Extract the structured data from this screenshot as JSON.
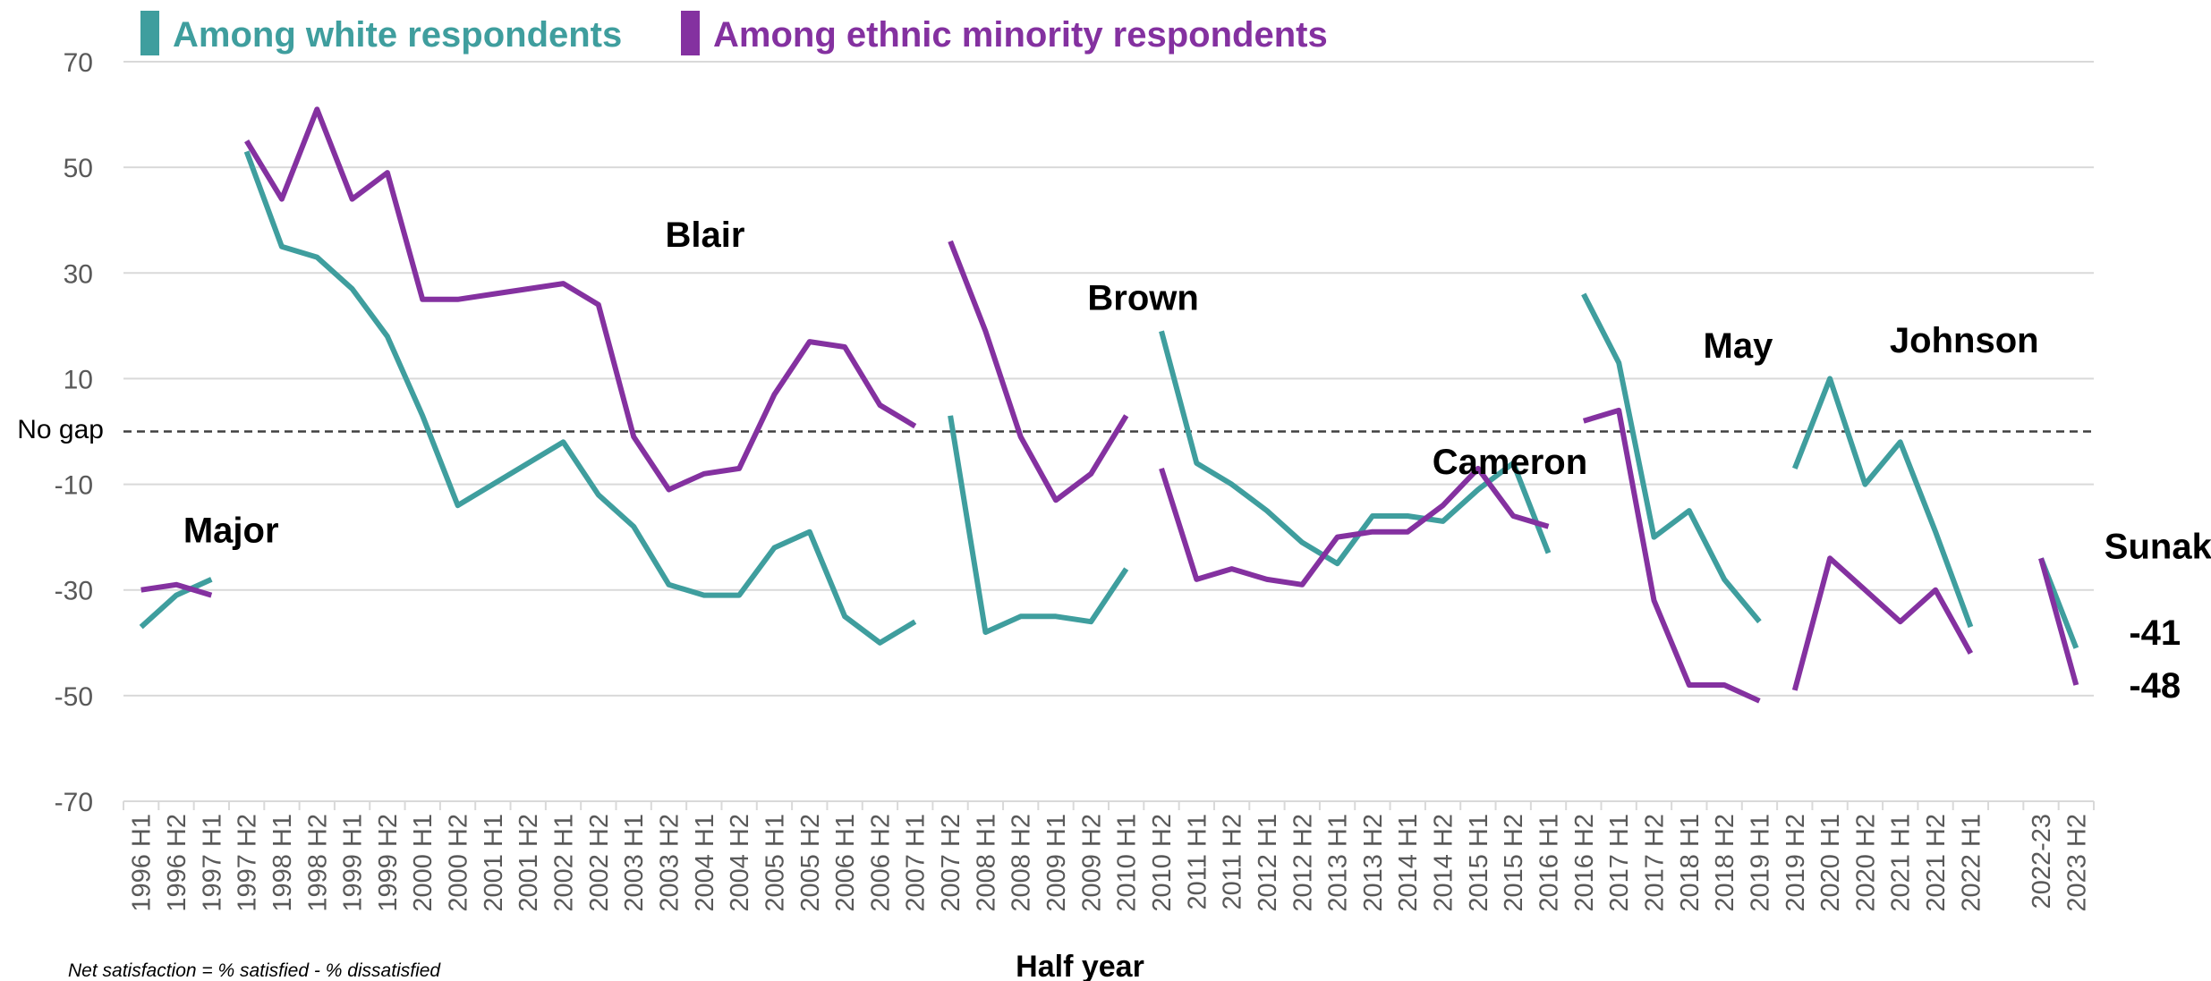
{
  "colors": {
    "white": "#3f9e9e",
    "minority": "#8431a0",
    "grid": "#d9d9d9",
    "gapline": "#404040"
  },
  "chart_data": {
    "type": "line",
    "ylim": [
      -70,
      70
    ],
    "yticks": [
      70,
      50,
      30,
      10,
      -10,
      -30,
      -50,
      -70
    ],
    "xlabel": "Half year",
    "note": "Net satisfaction = % satisfied - % dissatisfied",
    "reference_line": {
      "y": 0,
      "label": "No gap"
    },
    "categories": [
      "1996 H1",
      "1996 H2",
      "1997 H1",
      "1997 H2",
      "1998 H1",
      "1998 H2",
      "1999 H1",
      "1999 H2",
      "2000 H1",
      "2000 H2",
      "2001 H1",
      "2001 H2",
      "2002 H1",
      "2002 H2",
      "2003 H1",
      "2003 H2",
      "2004 H1",
      "2004 H2",
      "2005 H1",
      "2005 H2",
      "2006 H1",
      "2006 H2",
      "2007 H1",
      "2007 H2",
      "2008 H1",
      "2008 H2",
      "2009 H1",
      "2009 H2",
      "2010 H1",
      "2010 H2",
      "2011 H1",
      "2011 H2",
      "2012 H1",
      "2012 H2",
      "2013 H1",
      "2013 H2",
      "2014 H1",
      "2014 H2",
      "2015 H1",
      "2015 H2",
      "2016 H1",
      "2016 H2",
      "2017 H1",
      "2017 H2",
      "2018 H1",
      "2018 H2",
      "2019 H1",
      "2019 H2",
      "2020 H1",
      "2020 H2",
      "2021 H1",
      "2021 H2",
      "2022 H1",
      "",
      "2022-23",
      "2023 H2"
    ],
    "series": [
      {
        "name": "Among white respondents",
        "color_key": "white",
        "segments": [
          [
            [
              0,
              -37
            ],
            [
              1,
              -31
            ],
            [
              2,
              -28
            ]
          ],
          [
            [
              3,
              53
            ],
            [
              4,
              35
            ],
            [
              5,
              33
            ],
            [
              6,
              27
            ],
            [
              7,
              18
            ],
            [
              8,
              3
            ],
            [
              9,
              -14
            ],
            [
              10,
              -10
            ],
            [
              11,
              -6
            ],
            [
              12,
              -2
            ],
            [
              13,
              -12
            ],
            [
              14,
              -18
            ],
            [
              15,
              -29
            ],
            [
              16,
              -31
            ],
            [
              17,
              -31
            ],
            [
              18,
              -22
            ],
            [
              19,
              -19
            ],
            [
              20,
              -35
            ],
            [
              21,
              -40
            ],
            [
              22,
              -36
            ]
          ],
          [
            [
              23,
              3
            ],
            [
              24,
              -38
            ],
            [
              25,
              -35
            ],
            [
              26,
              -35
            ],
            [
              27,
              -36
            ],
            [
              28,
              -26
            ]
          ],
          [
            [
              29,
              19
            ],
            [
              30,
              -6
            ],
            [
              31,
              -10
            ],
            [
              32,
              -15
            ],
            [
              33,
              -21
            ],
            [
              34,
              -25
            ],
            [
              35,
              -16
            ],
            [
              36,
              -16
            ],
            [
              37,
              -17
            ],
            [
              38,
              -11
            ],
            [
              39,
              -6
            ],
            [
              40,
              -23
            ]
          ],
          [
            [
              41,
              26
            ],
            [
              42,
              13
            ],
            [
              43,
              -20
            ],
            [
              44,
              -15
            ],
            [
              45,
              -28
            ],
            [
              46,
              -36
            ]
          ],
          [
            [
              47,
              -7
            ],
            [
              48,
              10
            ],
            [
              49,
              -10
            ],
            [
              50,
              -2
            ],
            [
              51,
              -19
            ],
            [
              52,
              -37
            ]
          ],
          [
            [
              54,
              -24
            ],
            [
              55,
              -41
            ]
          ]
        ]
      },
      {
        "name": "Among ethnic minority respondents",
        "color_key": "minority",
        "segments": [
          [
            [
              0,
              -30
            ],
            [
              1,
              -29
            ],
            [
              2,
              -31
            ]
          ],
          [
            [
              3,
              55
            ],
            [
              4,
              44
            ],
            [
              5,
              61
            ],
            [
              6,
              44
            ],
            [
              7,
              49
            ],
            [
              8,
              25
            ],
            [
              9,
              25
            ],
            [
              10,
              26
            ],
            [
              11,
              27
            ],
            [
              12,
              28
            ],
            [
              13,
              24
            ],
            [
              14,
              -1
            ],
            [
              15,
              -11
            ],
            [
              16,
              -8
            ],
            [
              17,
              -7
            ],
            [
              18,
              7
            ],
            [
              19,
              17
            ],
            [
              20,
              16
            ],
            [
              21,
              5
            ],
            [
              22,
              1
            ]
          ],
          [
            [
              23,
              36
            ],
            [
              24,
              19
            ],
            [
              25,
              -1
            ],
            [
              26,
              -13
            ],
            [
              27,
              -8
            ],
            [
              28,
              3
            ]
          ],
          [
            [
              29,
              -7
            ],
            [
              30,
              -28
            ],
            [
              31,
              -26
            ],
            [
              32,
              -28
            ],
            [
              33,
              -29
            ],
            [
              34,
              -20
            ],
            [
              35,
              -19
            ],
            [
              36,
              -19
            ],
            [
              37,
              -14
            ],
            [
              38,
              -7
            ],
            [
              39,
              -16
            ],
            [
              40,
              -18
            ]
          ],
          [
            [
              41,
              2
            ],
            [
              42,
              4
            ],
            [
              43,
              -32
            ],
            [
              44,
              -48
            ],
            [
              45,
              -48
            ],
            [
              46,
              -51
            ]
          ],
          [
            [
              47,
              -49
            ],
            [
              48,
              -24
            ],
            [
              49,
              -30
            ],
            [
              50,
              -36
            ],
            [
              51,
              -30
            ],
            [
              52,
              -42
            ]
          ],
          [
            [
              54,
              -24
            ],
            [
              55,
              -48
            ]
          ]
        ]
      }
    ],
    "annotations": [
      {
        "text": "Major",
        "x": 1.2,
        "y": -21
      },
      {
        "text": "Blair",
        "x": 14.9,
        "y": 35
      },
      {
        "text": "Brown",
        "x": 26.9,
        "y": 23
      },
      {
        "text": "Cameron",
        "x": 36.7,
        "y": -8
      },
      {
        "text": "May",
        "x": 44.4,
        "y": 14
      },
      {
        "text": "Johnson",
        "x": 49.7,
        "y": 15
      },
      {
        "text": "Sunak",
        "x": 55.8,
        "y": -24
      }
    ],
    "end_labels": [
      {
        "text": "-41",
        "x": 56.5,
        "y": -38
      },
      {
        "text": "-48",
        "x": 56.5,
        "y": -48
      }
    ]
  }
}
